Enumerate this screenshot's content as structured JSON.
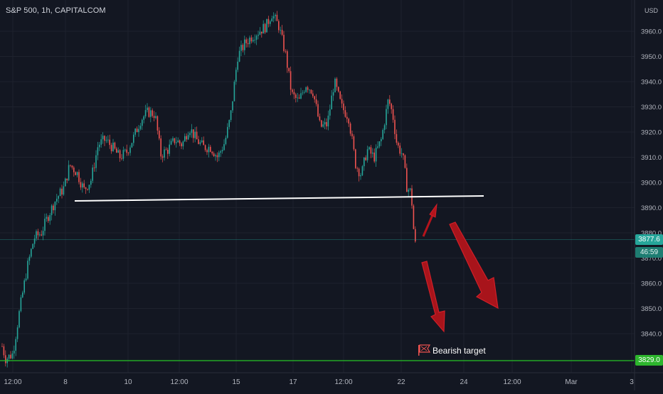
{
  "chart_data": {
    "type": "candlestick",
    "title": "S&P 500, 1h, CAPITALCOM",
    "currency": "USD",
    "x_tick_labels": [
      "12:00",
      "8",
      "10",
      "12:00",
      "15",
      "17",
      "12:00",
      "22",
      "24",
      "12:00",
      "Mar",
      "3"
    ],
    "y_tick_labels": [
      3840.0,
      3850.0,
      3860.0,
      3870.0,
      3880.0,
      3890.0,
      3900.0,
      3910.0,
      3920.0,
      3930.0,
      3940.0,
      3950.0,
      3960.0
    ],
    "ylim": [
      3826,
      3971
    ],
    "grid": true,
    "last_price": "3877.6",
    "countdown": "46:59",
    "target_price": "3829.0",
    "support_line_level": [
      3892.5,
      3894.5
    ],
    "annotation": "Bearish target",
    "colors": {
      "background": "#131722",
      "up": "#26a69a",
      "down": "#ef5350",
      "support_line": "#ffffff",
      "target_line": "#26c426",
      "arrow": "#b5141c",
      "last_price_badge": "#26a69a",
      "target_badge": "#2db52d"
    },
    "price_path": [
      [
        0,
        3838
      ],
      [
        8,
        3830
      ],
      [
        18,
        3832
      ],
      [
        28,
        3850
      ],
      [
        38,
        3866
      ],
      [
        48,
        3878
      ],
      [
        58,
        3880
      ],
      [
        68,
        3887
      ],
      [
        78,
        3893
      ],
      [
        90,
        3898
      ],
      [
        98,
        3907
      ],
      [
        108,
        3904
      ],
      [
        118,
        3897
      ],
      [
        128,
        3901
      ],
      [
        138,
        3915
      ],
      [
        148,
        3917
      ],
      [
        158,
        3914
      ],
      [
        168,
        3910
      ],
      [
        178,
        3912
      ],
      [
        188,
        3918
      ],
      [
        198,
        3925
      ],
      [
        208,
        3928
      ],
      [
        218,
        3927
      ],
      [
        226,
        3911
      ],
      [
        236,
        3913
      ],
      [
        246,
        3917
      ],
      [
        256,
        3915
      ],
      [
        266,
        3922
      ],
      [
        276,
        3917
      ],
      [
        286,
        3914
      ],
      [
        296,
        3914
      ],
      [
        306,
        3910
      ],
      [
        316,
        3916
      ],
      [
        324,
        3926
      ],
      [
        334,
        3950
      ],
      [
        344,
        3955
      ],
      [
        354,
        3958
      ],
      [
        364,
        3960
      ],
      [
        374,
        3962
      ],
      [
        382,
        3967
      ],
      [
        392,
        3962
      ],
      [
        402,
        3950
      ],
      [
        410,
        3935
      ],
      [
        420,
        3932
      ],
      [
        430,
        3939
      ],
      [
        440,
        3936
      ],
      [
        450,
        3922
      ],
      [
        460,
        3923
      ],
      [
        470,
        3940
      ],
      [
        480,
        3930
      ],
      [
        490,
        3926
      ],
      [
        500,
        3907
      ],
      [
        508,
        3903
      ],
      [
        516,
        3913
      ],
      [
        526,
        3910
      ],
      [
        536,
        3917
      ],
      [
        546,
        3933
      ],
      [
        552,
        3927
      ],
      [
        558,
        3915
      ],
      [
        566,
        3911
      ],
      [
        572,
        3898
      ],
      [
        578,
        3896
      ],
      [
        582,
        3879
      ],
      [
        585,
        3873
      ]
    ]
  }
}
